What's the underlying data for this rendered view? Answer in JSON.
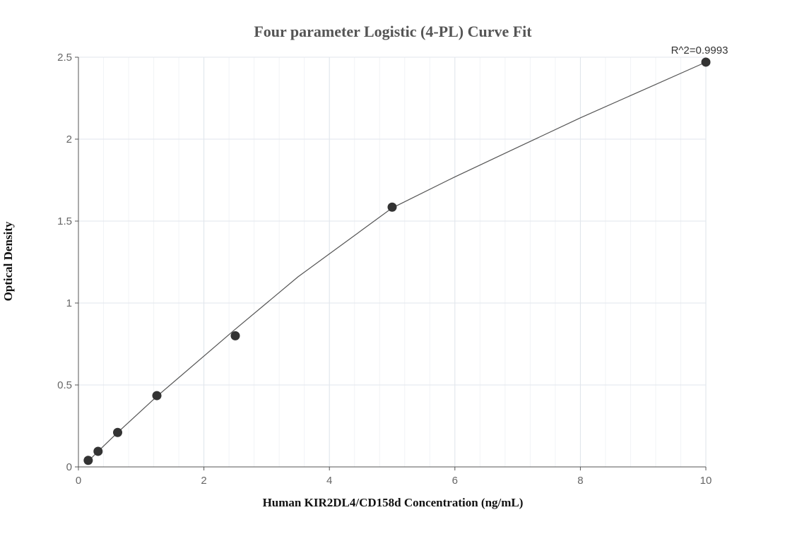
{
  "chart_data": {
    "type": "scatter",
    "title": "Four parameter Logistic (4-PL) Curve Fit",
    "xlabel": "Human KIR2DL4/CD158d Concentration (ng/mL)",
    "ylabel": "Optical Density",
    "xlim": [
      0,
      10
    ],
    "ylim": [
      0,
      2.5
    ],
    "x_ticks": [
      0,
      2,
      4,
      6,
      8,
      10
    ],
    "x_tick_labels": [
      "0",
      "2",
      "4",
      "6",
      "8",
      "10"
    ],
    "y_ticks": [
      0,
      0.5,
      1,
      1.5,
      2,
      2.5
    ],
    "y_tick_labels": [
      "0",
      "0.5",
      "1",
      "1.5",
      "2",
      "2.5"
    ],
    "grid": true,
    "series": [
      {
        "x": [
          0.156,
          0.313,
          0.625,
          1.25,
          2.5,
          5,
          10
        ],
        "y": [
          0.04,
          0.095,
          0.21,
          0.435,
          0.8,
          1.585,
          2.47
        ],
        "color": "#333333"
      }
    ],
    "fit_curve": {
      "x": [
        0.156,
        0.313,
        0.625,
        1.25,
        2.5,
        3,
        3.5,
        4,
        4.5,
        5,
        6,
        7,
        8,
        9,
        10
      ],
      "y": [
        0.035,
        0.095,
        0.21,
        0.43,
        0.84,
        1.0,
        1.16,
        1.3,
        1.44,
        1.58,
        1.77,
        1.95,
        2.13,
        2.3,
        2.47
      ],
      "color": "#555555"
    },
    "annotation": {
      "text": "R^2=0.9993",
      "x": 10,
      "y": 2.47
    }
  }
}
